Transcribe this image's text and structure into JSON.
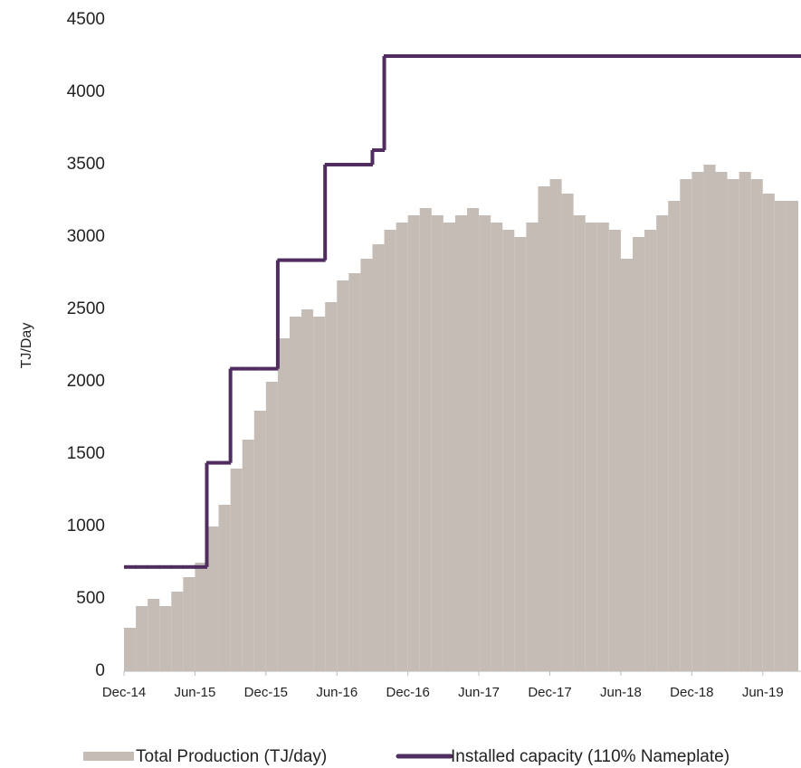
{
  "chart_data": {
    "type": "bar",
    "y_label": "TJ/Day",
    "categories": [
      "Dec-14",
      null,
      null,
      null,
      null,
      null,
      "Jun-15",
      null,
      null,
      null,
      null,
      null,
      "Dec-15",
      null,
      null,
      null,
      null,
      null,
      "Jun-16",
      null,
      null,
      null,
      null,
      null,
      "Dec-16",
      null,
      null,
      null,
      null,
      null,
      "Jun-17",
      null,
      null,
      null,
      null,
      null,
      "Dec-17",
      null,
      null,
      null,
      null,
      null,
      "Jun-18",
      null,
      null,
      null,
      null,
      null,
      "Dec-18",
      null,
      null,
      null,
      null,
      null,
      "Jun-19",
      null,
      null,
      null
    ],
    "series": [
      {
        "name": "Total Production (TJ/day)",
        "color": "#c5bdb5",
        "type": "bar",
        "values": [
          300,
          450,
          500,
          450,
          550,
          650,
          750,
          1000,
          1150,
          1400,
          1600,
          1800,
          2000,
          2300,
          2450,
          2500,
          2450,
          2550,
          2700,
          2750,
          2850,
          2950,
          3050,
          3100,
          3150,
          3200,
          3150,
          3100,
          3150,
          3200,
          3150,
          3100,
          3050,
          3000,
          3100,
          3350,
          3400,
          3300,
          3150,
          3100,
          3100,
          3050,
          2850,
          3000,
          3050,
          3150,
          3250,
          3400,
          3450,
          3500,
          3450,
          3400,
          3450,
          3400,
          3300,
          3250,
          3250,
          null
        ]
      },
      {
        "name": "Installed capacity (110% Nameplate)",
        "color": "#4f2d5f",
        "type": "step",
        "values": [
          720,
          720,
          720,
          720,
          720,
          720,
          720,
          1440,
          1440,
          2090,
          2090,
          2090,
          2090,
          2840,
          2840,
          2840,
          2840,
          3500,
          3500,
          3500,
          3500,
          3600,
          4250,
          4250,
          4250,
          4250,
          4250,
          4250,
          4250,
          4250,
          4250,
          4250,
          4250,
          4250,
          4250,
          4250,
          4250,
          4250,
          4250,
          4250,
          4250,
          4250,
          4250,
          4250,
          4250,
          4250,
          4250,
          4250,
          4250,
          4250,
          4250,
          4250,
          4250,
          4250,
          4250,
          4250,
          4250,
          4250
        ]
      }
    ],
    "ylim": [
      0,
      4500
    ],
    "yticks": [
      0,
      500,
      1000,
      1500,
      2000,
      2500,
      3000,
      3500,
      4000,
      4500
    ],
    "grid": false,
    "legend": "bottom"
  }
}
